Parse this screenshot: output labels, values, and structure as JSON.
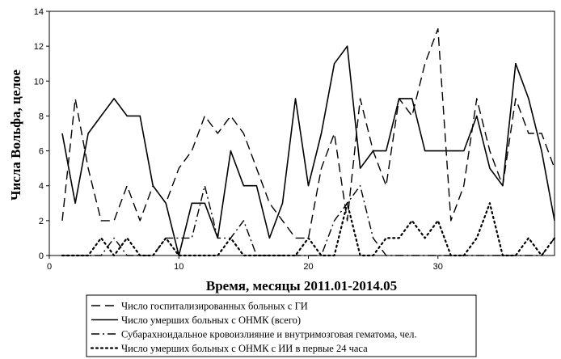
{
  "chart_data": {
    "type": "line",
    "xlabel": "Время, месяцы 2011.01-2014.05",
    "ylabel": "Числа Вольфа, целое",
    "xlim": [
      0,
      39
    ],
    "ylim": [
      0,
      14
    ],
    "xticks": [
      0,
      10,
      20,
      30
    ],
    "yticks": [
      0,
      2,
      4,
      6,
      8,
      10,
      12,
      14
    ],
    "grid": false,
    "legend_position": "bottom",
    "x": [
      1,
      2,
      3,
      4,
      5,
      6,
      7,
      8,
      9,
      10,
      11,
      12,
      13,
      14,
      15,
      16,
      17,
      18,
      19,
      20,
      21,
      22,
      23,
      24,
      25,
      26,
      27,
      28,
      29,
      30,
      31,
      32,
      33,
      34,
      35,
      36,
      37,
      38,
      39
    ],
    "series": [
      {
        "name": "Число госпитализированных больных с ГИ",
        "dash": "long-dash",
        "values": [
          2,
          9,
          5,
          2,
          2,
          4,
          2,
          4,
          3,
          5,
          6,
          8,
          7,
          8,
          7,
          5,
          3,
          2,
          1,
          1,
          5,
          7,
          2,
          9,
          6,
          4,
          9,
          8,
          11,
          13,
          2,
          4,
          9,
          6,
          4,
          9,
          7,
          7,
          5
        ]
      },
      {
        "name": "Число умерших больных с ОНМК (всего)",
        "dash": "solid",
        "values": [
          7,
          3,
          7,
          8,
          9,
          8,
          8,
          4,
          3,
          0,
          3,
          3,
          1,
          6,
          4,
          4,
          1,
          3,
          9,
          4,
          7,
          11,
          12,
          5,
          6,
          6,
          9,
          9,
          6,
          6,
          6,
          6,
          8,
          5,
          4,
          11,
          9,
          6,
          2
        ]
      },
      {
        "name": "Субарахноидальное кровоизлияние и внутримозговая гематома, чел.",
        "dash": "dash-dot",
        "values": [
          0,
          0,
          0,
          0,
          1,
          0,
          0,
          0,
          1,
          1,
          1,
          4,
          1,
          1,
          2,
          0,
          0,
          0,
          0,
          0,
          0,
          2,
          3,
          4,
          1,
          0,
          0,
          0,
          0,
          0,
          0,
          0,
          0,
          0,
          0,
          0,
          0,
          0,
          1
        ]
      },
      {
        "name": "Число умерших больных с ОНМК с ИИ в первые 24 часа",
        "dash": "dotted",
        "values": [
          0,
          0,
          0,
          1,
          0,
          1,
          0,
          0,
          1,
          0,
          0,
          0,
          0,
          1,
          0,
          0,
          0,
          0,
          0,
          1,
          0,
          0,
          3,
          0,
          0,
          1,
          1,
          2,
          1,
          2,
          0,
          0,
          1,
          3,
          0,
          0,
          1,
          0,
          1
        ]
      }
    ]
  }
}
